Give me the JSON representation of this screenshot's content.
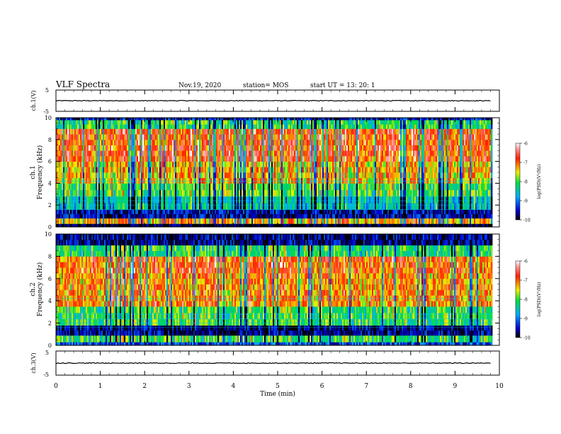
{
  "header": {
    "title": "VLF Spectra",
    "date": "Nov.19, 2020",
    "station": "station= MOS",
    "start": "start  UT =  13: 20: 1"
  },
  "chart_data": [
    {
      "type": "line",
      "panel": "ch1-waveform",
      "ylabel": "ch.1(V)",
      "ylim": [
        -5,
        5
      ],
      "yticks": [
        "5",
        "-5"
      ],
      "xlim": [
        0,
        10
      ],
      "series": [
        {
          "x": [
            0,
            9.82
          ],
          "values": [
            0,
            0
          ]
        }
      ]
    },
    {
      "type": "heatmap",
      "panel": "ch1-spectrogram",
      "ylabel": "ch.1",
      "ylabel2": "Frequency (kHz)",
      "ylim": [
        0,
        10
      ],
      "yticks": [
        "0",
        "2",
        "4",
        "6",
        "8",
        "10"
      ],
      "xlim": [
        0,
        10
      ],
      "data_xmax": 9.82,
      "colorbar": {
        "label": "log(PSD)(V²/Hz)",
        "range": [
          -10,
          -6
        ],
        "ticks": [
          "-6",
          "-7",
          "-8",
          "-9",
          "-10"
        ]
      },
      "bands": [
        {
          "f0": 0.0,
          "f1": 0.3,
          "level": -10
        },
        {
          "f0": 0.3,
          "f1": 0.8,
          "level": -7.3
        },
        {
          "f0": 0.8,
          "f1": 1.6,
          "level": -9.6
        },
        {
          "f0": 1.6,
          "f1": 2.8,
          "level": -8.6
        },
        {
          "f0": 2.8,
          "f1": 4.0,
          "level": -8.0
        },
        {
          "f0": 4.0,
          "f1": 6.0,
          "level": -7.4
        },
        {
          "f0": 6.0,
          "f1": 9.0,
          "level": -6.9
        },
        {
          "f0": 9.0,
          "f1": 9.8,
          "level": -8.2
        },
        {
          "f0": 9.8,
          "f1": 10.0,
          "level": -9.5
        }
      ]
    },
    {
      "type": "heatmap",
      "panel": "ch2-spectrogram",
      "ylabel": "ch.2",
      "ylabel2": "Frequency (kHz)",
      "ylim": [
        0,
        10
      ],
      "yticks": [
        "0",
        "2",
        "4",
        "6",
        "8",
        "10"
      ],
      "xlim": [
        0,
        10
      ],
      "data_xmax": 9.82,
      "colorbar": {
        "label": "log(PSD)(V²/Hz)",
        "range": [
          -10,
          -6
        ],
        "ticks": [
          "-6",
          "-7",
          "-8",
          "-9",
          "-10"
        ]
      },
      "bands": [
        {
          "f0": 0.0,
          "f1": 0.3,
          "level": -9.2
        },
        {
          "f0": 0.3,
          "f1": 0.9,
          "level": -8.1
        },
        {
          "f0": 0.9,
          "f1": 1.8,
          "level": -9.7
        },
        {
          "f0": 1.8,
          "f1": 3.5,
          "level": -8.1
        },
        {
          "f0": 3.5,
          "f1": 6.5,
          "level": -7.2
        },
        {
          "f0": 6.5,
          "f1": 8.0,
          "level": -7.0
        },
        {
          "f0": 8.0,
          "f1": 9.0,
          "level": -8.2
        },
        {
          "f0": 9.0,
          "f1": 10.0,
          "level": -9.7
        }
      ]
    },
    {
      "type": "line",
      "panel": "ch3-waveform",
      "ylabel": "ch.3(V)",
      "ylim": [
        -5,
        5
      ],
      "yticks": [
        "5",
        "-5"
      ],
      "xlim": [
        0,
        10
      ],
      "series": [
        {
          "x": [
            0,
            9.82
          ],
          "values": [
            0,
            0
          ]
        }
      ]
    }
  ],
  "time_axis": {
    "label": "Time  (min)",
    "ticks": [
      "0",
      "1",
      "2",
      "3",
      "4",
      "5",
      "6",
      "7",
      "8",
      "9",
      "10"
    ]
  }
}
